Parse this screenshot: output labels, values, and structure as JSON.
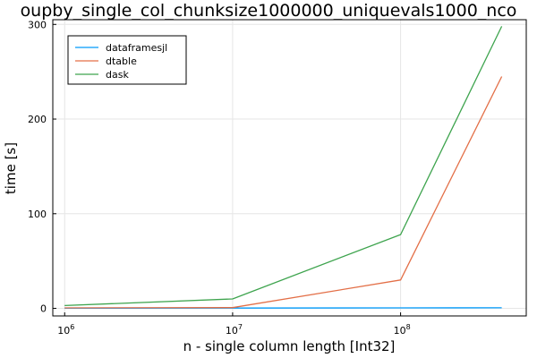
{
  "chart_data": {
    "type": "line",
    "title": "oupby_single_col_chunksize1000000_uniquevals1000_nco",
    "xlabel": "n - single column length [Int32]",
    "ylabel": "time [s]",
    "x_scale": "log10",
    "xlim": [
      850000,
      560000000
    ],
    "ylim": [
      -8,
      305
    ],
    "x_ticks": [
      {
        "value": 1000000,
        "base": "10",
        "exp": "6"
      },
      {
        "value": 10000000,
        "base": "10",
        "exp": "7"
      },
      {
        "value": 100000000,
        "base": "10",
        "exp": "8"
      }
    ],
    "y_ticks": [
      {
        "value": 0,
        "label": "0"
      },
      {
        "value": 100,
        "label": "100"
      },
      {
        "value": 200,
        "label": "200"
      },
      {
        "value": 300,
        "label": "300"
      }
    ],
    "grid": true,
    "legend_position": "top-left",
    "x": [
      1000000,
      10000000,
      100000000,
      400000000
    ],
    "series": [
      {
        "name": "dataframesjl",
        "color": "#009AFA",
        "values": [
          0.1,
          0.3,
          0.5,
          0.6
        ]
      },
      {
        "name": "dtable",
        "color": "#E36F47",
        "values": [
          0.5,
          0.8,
          30,
          245
        ]
      },
      {
        "name": "dask",
        "color": "#3EA44E",
        "values": [
          3,
          10,
          78,
          298
        ]
      }
    ]
  }
}
